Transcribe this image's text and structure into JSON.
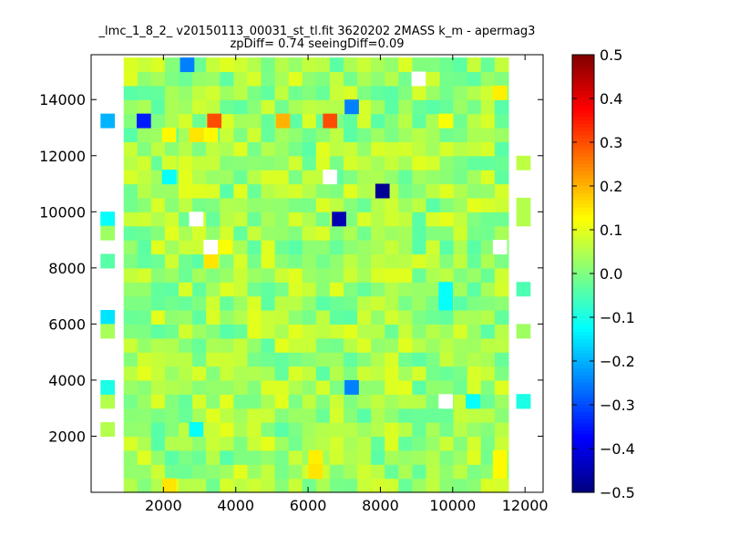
{
  "chart_data": {
    "type": "heatmap",
    "title": "_lmc_1_8_2_ v20150113_00031_st_tl.fit 3620202 2MASS k_m - apermag3",
    "subtitle": "zpDiff= 0.74 seeingDiff=0.09",
    "xlabel": "",
    "ylabel": "",
    "xlim": [
      0,
      12500
    ],
    "ylim": [
      0,
      15600
    ],
    "x_ticks": [
      2000,
      4000,
      6000,
      8000,
      10000,
      12000
    ],
    "y_ticks": [
      2000,
      4000,
      6000,
      8000,
      10000,
      12000,
      14000
    ],
    "x_tick_labels": [
      "2000",
      "4000",
      "6000",
      "8000",
      "10000",
      "12000"
    ],
    "y_tick_labels": [
      "2000",
      "4000",
      "6000",
      "8000",
      "10000",
      "12000",
      "14000"
    ],
    "colorbar": {
      "colormap": "jet",
      "range": [
        -0.5,
        0.5
      ],
      "ticks": [
        0.5,
        0.4,
        0.3,
        0.2,
        0.1,
        0.0,
        -0.1,
        -0.2,
        -0.3,
        -0.4,
        -0.5
      ],
      "tick_labels": [
        "0.5",
        "0.4",
        "0.3",
        "0.2",
        "0.1",
        "0.0",
        "−0.1",
        "−0.2",
        "−0.3",
        "−0.4",
        "−0.5"
      ]
    },
    "grid": false,
    "legend": "none",
    "cells_note_x_bin_size": 380,
    "cells_note_y_bin_size": 500,
    "bin_size": [
      380,
      500
    ],
    "bins_x_start": 0,
    "bins_y_start": 0,
    "background_value": 0.03,
    "cells": [
      {
        "x": 2650,
        "y": 15250,
        "value": -0.25
      },
      {
        "x": 7200,
        "y": 13750,
        "value": -0.25
      },
      {
        "x": 450,
        "y": 13250,
        "value": -0.2
      },
      {
        "x": 1450,
        "y": 13250,
        "value": -0.35
      },
      {
        "x": 3400,
        "y": 13250,
        "value": 0.3
      },
      {
        "x": 5300,
        "y": 13250,
        "value": 0.2
      },
      {
        "x": 6600,
        "y": 13250,
        "value": 0.3
      },
      {
        "x": 9800,
        "y": 13250,
        "value": 0.12
      },
      {
        "x": 11300,
        "y": 14250,
        "value": 0.14
      },
      {
        "x": 2150,
        "y": 12750,
        "value": 0.13
      },
      {
        "x": 2900,
        "y": 12750,
        "value": 0.15
      },
      {
        "x": 3300,
        "y": 12750,
        "value": 0.13
      },
      {
        "x": 2150,
        "y": 11750,
        "value": 0.08
      },
      {
        "x": 2150,
        "y": 11250,
        "value": -0.12
      },
      {
        "x": 8050,
        "y": 10750,
        "value": -0.48
      },
      {
        "x": 6850,
        "y": 9750,
        "value": -0.45
      },
      {
        "x": 450,
        "y": 9750,
        "value": -0.12
      },
      {
        "x": 3300,
        "y": 8250,
        "value": 0.15
      },
      {
        "x": 3700,
        "y": 8750,
        "value": 0.12
      },
      {
        "x": 9800,
        "y": 7250,
        "value": -0.12
      },
      {
        "x": 9800,
        "y": 6750,
        "value": -0.12
      },
      {
        "x": 450,
        "y": 6250,
        "value": -0.15
      },
      {
        "x": 7200,
        "y": 3750,
        "value": -0.25
      },
      {
        "x": 10550,
        "y": 3250,
        "value": -0.12
      },
      {
        "x": 11950,
        "y": 3250,
        "value": -0.1
      },
      {
        "x": 2900,
        "y": 2250,
        "value": -0.12
      },
      {
        "x": 6200,
        "y": 1250,
        "value": 0.14
      },
      {
        "x": 6200,
        "y": 750,
        "value": 0.15
      },
      {
        "x": 2150,
        "y": 250,
        "value": 0.15
      },
      {
        "x": 11300,
        "y": 1250,
        "value": 0.13
      },
      {
        "x": 11300,
        "y": 750,
        "value": 0.13
      }
    ],
    "missing_cells": [
      {
        "x": 9050,
        "y": 14750
      },
      {
        "x": 6600,
        "y": 11250
      },
      {
        "x": 2900,
        "y": 9750
      },
      {
        "x": 3300,
        "y": 8750
      },
      {
        "x": 11300,
        "y": 8750
      },
      {
        "x": 9800,
        "y": 3250
      }
    ]
  }
}
